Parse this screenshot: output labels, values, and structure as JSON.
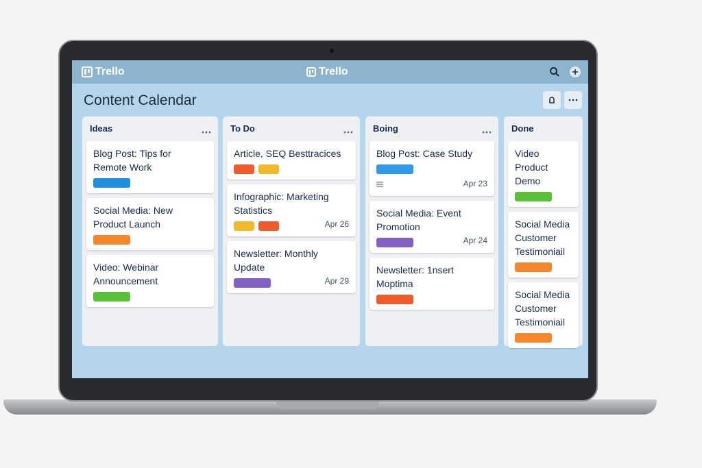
{
  "header": {
    "logo_left": "Trello",
    "logo_center": "Trello"
  },
  "board": {
    "title": "Content Calendar",
    "lists": [
      {
        "title": "Ideas",
        "cards": [
          {
            "text": "Blog Post: Tips for Remote Work",
            "labels": [
              "#1f8fdc"
            ]
          },
          {
            "text": "Social Media: New Product Launch",
            "labels": [
              "#f5862b"
            ]
          },
          {
            "text": "Video: Webinar Announcement",
            "labels": [
              "#5bbf3a"
            ]
          }
        ]
      },
      {
        "title": "To Do",
        "cards": [
          {
            "text": "Article, SEQ Besttracices",
            "labels": [
              "#ef5b2b",
              "#f2b92a"
            ]
          },
          {
            "text": "Infographic: Marketing Statistics",
            "labels": [
              "#f2b92a",
              "#ef5b2b"
            ],
            "date": "Apr 26"
          },
          {
            "text": "Newsletter: Monthly Update",
            "labels": [
              "#8261c2"
            ],
            "date": "Apr 29"
          }
        ]
      },
      {
        "title": "Boing",
        "cards": [
          {
            "text": "Blog Post: Case Study",
            "labels": [
              "#2f9be8"
            ],
            "date": "Apr 23",
            "has_description": true
          },
          {
            "text": "Social Media: Event Promotion",
            "labels": [
              "#8261c2"
            ],
            "date": "Apr 24"
          },
          {
            "text": "Newsletter: 1nsert Moptima",
            "labels": [
              "#ef5b2b"
            ]
          }
        ]
      },
      {
        "title": "Done",
        "cards": [
          {
            "text": "Video Product Demo",
            "labels": [
              "#5bbf3a"
            ]
          },
          {
            "text": "Social Media Customer Testimoniail",
            "labels": [
              "#f5862b"
            ]
          },
          {
            "text": "Social Media Customer Testimoniail",
            "labels": [
              "#f5862b"
            ]
          }
        ]
      }
    ]
  }
}
